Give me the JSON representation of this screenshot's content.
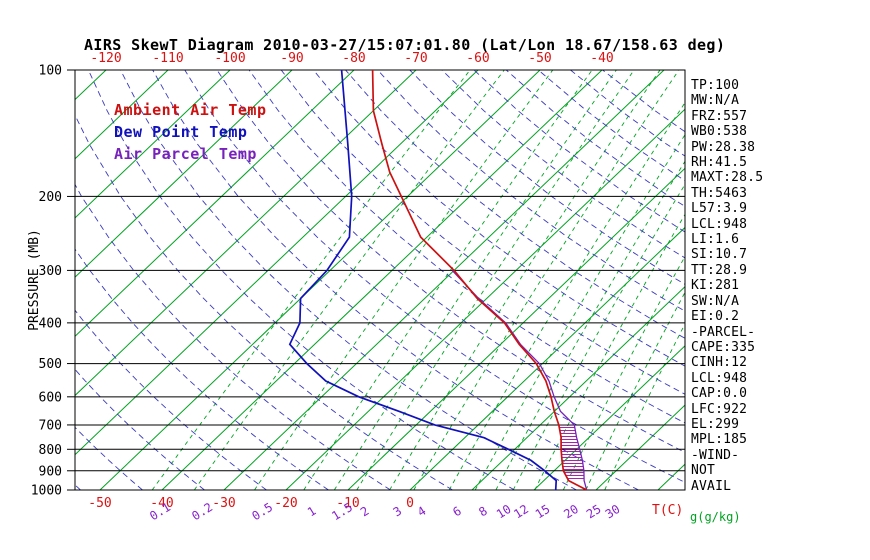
{
  "title": "AIRS SkewT Diagram 2010-03-27/15:07:01.80 (Lat/Lon 18.67/158.63 deg)",
  "legend": {
    "ambient": {
      "label": "Ambient Air Temp",
      "color": "#cc1111"
    },
    "dewpoint": {
      "label": "Dew Point Temp",
      "color": "#1111bb"
    },
    "parcel": {
      "label": "Air Parcel Temp",
      "color": "#7722bb"
    }
  },
  "axes": {
    "pressure_axis_label": "PRESSURE (MB)",
    "pressure_ticks_mb": [
      100,
      200,
      300,
      400,
      500,
      600,
      700,
      800,
      900,
      1000
    ],
    "top_temp_ticks_c": [
      -120,
      -110,
      -100,
      -90,
      -80,
      -70,
      -60,
      -50,
      -40
    ],
    "bottom_temp_ticks_c": [
      -50,
      -40,
      -30,
      -20,
      -10,
      0
    ],
    "mixing_ratio_ticks_gkg": [
      0.1,
      0.2,
      0.5,
      1,
      1.5,
      2,
      3,
      4,
      6,
      8,
      10,
      12,
      15,
      20,
      25,
      30
    ],
    "temp_unit_label": "T(C)",
    "mixing_unit_label": "g(g/kg)"
  },
  "indices_panel": {
    "lines": [
      "TP:100",
      "MW:N/A",
      "FRZ:557",
      "WB0:538",
      "PW:28.38",
      "RH:41.5",
      "MAXT:28.5",
      "TH:5463",
      "L57:3.9",
      "LCL:948",
      "LI:1.6",
      "SI:10.7",
      "TT:28.9",
      "KI:281",
      "SW:N/A",
      "EI:0.2",
      "-PARCEL-",
      "CAPE:335",
      "CINH:12",
      "LCL:948",
      "CAP:0.0",
      "LFC:922",
      "EL:299",
      "MPL:185",
      "-WIND-",
      "NOT",
      "AVAIL"
    ]
  },
  "colors": {
    "isotherm": "#00a321",
    "mixing_line": "#00a321",
    "dry_adiabat": "#3b3bbf",
    "pressure_line": "#000000",
    "axis_text": "#000000",
    "temp_axis_text": "#dd1111",
    "mixing_axis_text": "#8822cc",
    "mixing_unit_text": "#00a321",
    "hatch": "#aa22aa"
  },
  "chart_data": {
    "type": "line",
    "title": "AIRS SkewT Diagram 2010-03-27/15:07:01.80 (Lat/Lon 18.67/158.63 deg)",
    "y_axis": {
      "label": "PRESSURE (MB)",
      "scale": "log",
      "range_mb": [
        100,
        1000
      ]
    },
    "x_axis": {
      "label": "T(C)",
      "surface_range_c": [
        -50,
        40
      ],
      "skew_deg": 45
    },
    "series": [
      {
        "name": "Ambient Air Temp",
        "color": "#cc1111",
        "points": [
          [
            100,
            -77
          ],
          [
            125,
            -70
          ],
          [
            150,
            -63
          ],
          [
            175,
            -57
          ],
          [
            200,
            -51
          ],
          [
            250,
            -41
          ],
          [
            300,
            -30
          ],
          [
            350,
            -21.5
          ],
          [
            400,
            -13
          ],
          [
            450,
            -7
          ],
          [
            500,
            -1
          ],
          [
            550,
            3.5
          ],
          [
            600,
            7
          ],
          [
            650,
            10
          ],
          [
            700,
            13
          ],
          [
            750,
            15.5
          ],
          [
            800,
            17.5
          ],
          [
            850,
            19.5
          ],
          [
            900,
            21.5
          ],
          [
            950,
            24
          ],
          [
            1000,
            28.5
          ]
        ]
      },
      {
        "name": "Dew Point Temp",
        "color": "#1111bb",
        "points": [
          [
            100,
            -82
          ],
          [
            150,
            -68.5
          ],
          [
            200,
            -59
          ],
          [
            250,
            -52.5
          ],
          [
            300,
            -50.5
          ],
          [
            350,
            -50
          ],
          [
            400,
            -46
          ],
          [
            450,
            -44
          ],
          [
            500,
            -38
          ],
          [
            550,
            -32
          ],
          [
            600,
            -24
          ],
          [
            650,
            -15
          ],
          [
            700,
            -7
          ],
          [
            750,
            3
          ],
          [
            800,
            9
          ],
          [
            850,
            14.5
          ],
          [
            900,
            18.5
          ],
          [
            950,
            22
          ],
          [
            1000,
            23.5
          ]
        ]
      },
      {
        "name": "Air Parcel Temp",
        "color": "#7722bb",
        "points": [
          [
            300,
            -30.3
          ],
          [
            350,
            -21.3
          ],
          [
            400,
            -12.8
          ],
          [
            450,
            -6.8
          ],
          [
            500,
            -0.5
          ],
          [
            550,
            4
          ],
          [
            600,
            7.5
          ],
          [
            650,
            11
          ],
          [
            700,
            15.5
          ],
          [
            750,
            18
          ],
          [
            800,
            20.5
          ],
          [
            850,
            22.8
          ],
          [
            900,
            24.8
          ],
          [
            950,
            26.5
          ],
          [
            1000,
            28.5
          ]
        ]
      }
    ],
    "cape_hatch": {
      "between": [
        "Ambient Air Temp",
        "Air Parcel Temp"
      ],
      "pressure_range_mb": [
        700,
        950
      ]
    },
    "isotherms_c": {
      "min": -160,
      "max": 40,
      "step": 10
    },
    "dry_adiabats_theta_k": {
      "min": 220,
      "max": 450,
      "step": 10
    }
  }
}
